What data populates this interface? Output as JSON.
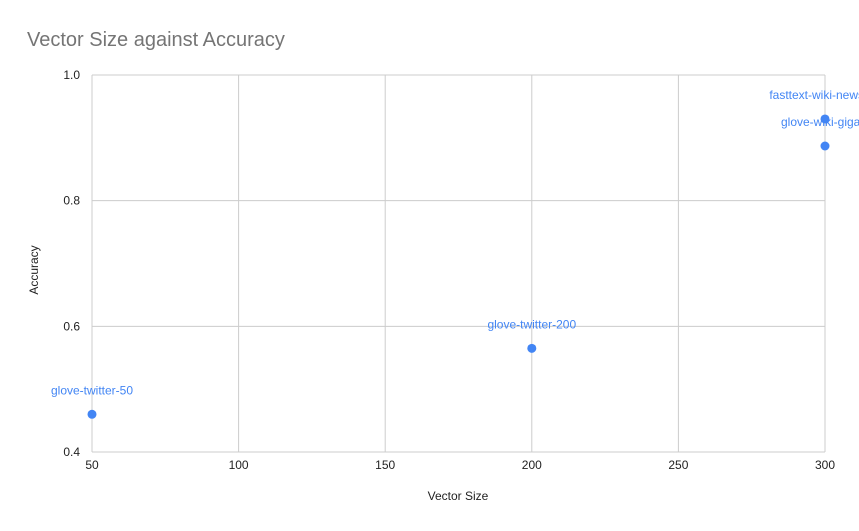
{
  "chart_data": {
    "type": "scatter",
    "title": "Vector Size against Accuracy",
    "xlabel": "Vector Size",
    "ylabel": "Accuracy",
    "xlim": [
      50,
      300
    ],
    "ylim": [
      0.4,
      1.0
    ],
    "xticks": [
      50,
      100,
      150,
      200,
      250,
      300
    ],
    "xtick_labels": [
      "50",
      "100",
      "150",
      "200",
      "250",
      "300"
    ],
    "yticks": [
      0.4,
      0.6,
      0.8,
      1.0
    ],
    "ytick_labels": [
      "0.4",
      "0.6",
      "0.8",
      "1.0"
    ],
    "grid": true,
    "series": [
      {
        "name": "Accuracy",
        "color": "#4285f4",
        "points": [
          {
            "x": 50,
            "y": 0.46,
            "label": "glove-twitter-50"
          },
          {
            "x": 200,
            "y": 0.565,
            "label": "glove-twitter-200"
          },
          {
            "x": 300,
            "y": 0.887,
            "label": "glove-wiki-gigaw"
          },
          {
            "x": 300,
            "y": 0.93,
            "label": "fasttext-wiki-news-su"
          }
        ]
      }
    ],
    "colors": {
      "title": "#757575",
      "axis_text": "#222222",
      "grid": "#cccccc",
      "point": "#4285f4",
      "label": "#4285f4"
    }
  }
}
